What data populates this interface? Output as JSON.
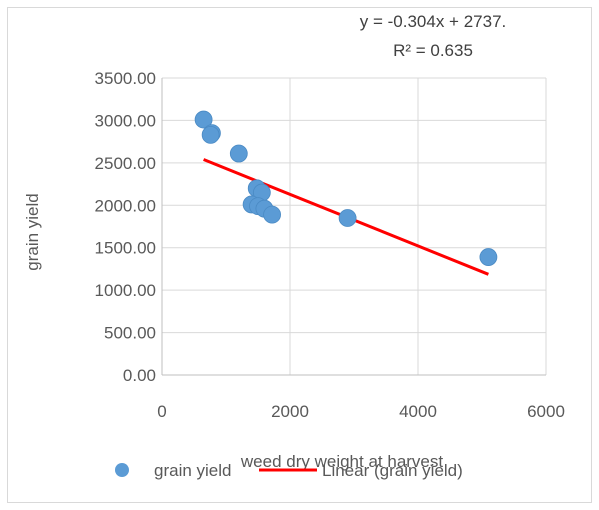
{
  "chart_data": {
    "type": "scatter",
    "title": "",
    "xlabel": "weed dry weight at harvest",
    "ylabel": "grain yield",
    "xlim": [
      0,
      6000
    ],
    "ylim": [
      0,
      3500
    ],
    "x_ticks": [
      "0",
      "2000",
      "4000",
      "6000"
    ],
    "y_ticks": [
      "0.00",
      "500.00",
      "1000.00",
      "1500.00",
      "2000.00",
      "2500.00",
      "3000.00",
      "3500.00"
    ],
    "grid": "vertical and horizontal major gridlines",
    "legend_position": "bottom",
    "series": [
      {
        "name": "grain yield",
        "color": "#5b9bd5",
        "points": [
          {
            "x": 650,
            "y": 3010
          },
          {
            "x": 780,
            "y": 2850
          },
          {
            "x": 760,
            "y": 2830
          },
          {
            "x": 1200,
            "y": 2610
          },
          {
            "x": 1480,
            "y": 2200
          },
          {
            "x": 1560,
            "y": 2150
          },
          {
            "x": 1400,
            "y": 2010
          },
          {
            "x": 1500,
            "y": 1990
          },
          {
            "x": 1600,
            "y": 1960
          },
          {
            "x": 1720,
            "y": 1890
          },
          {
            "x": 2900,
            "y": 1850
          },
          {
            "x": 5100,
            "y": 1390
          }
        ]
      }
    ],
    "trendline": {
      "name": "Linear (grain yield)",
      "color": "#ff0000",
      "slope": -0.304,
      "intercept": 2737,
      "x_start": 650,
      "x_end": 5100,
      "equation_text": "y = -0.304x + 2737.",
      "r2_text": "R² = 0.635"
    },
    "legend": [
      {
        "label": "grain yield",
        "kind": "marker",
        "color": "#5b9bd5"
      },
      {
        "label": "Linear (grain yield)",
        "kind": "line",
        "color": "#ff0000"
      }
    ]
  }
}
